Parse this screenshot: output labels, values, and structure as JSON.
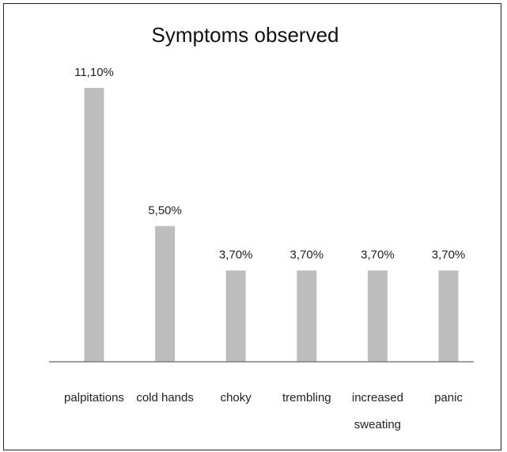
{
  "chart_data": {
    "type": "bar",
    "title": "Symptoms observed",
    "xlabel": "",
    "ylabel": "",
    "categories": [
      "palpitations",
      "cold hands",
      "choky",
      "trembling",
      "increased sweating",
      "panic"
    ],
    "category_lines": [
      [
        "palpitations"
      ],
      [
        "cold hands"
      ],
      [
        "choky"
      ],
      [
        "trembling"
      ],
      [
        "increased",
        "sweating"
      ],
      [
        "panic"
      ]
    ],
    "values": [
      11.1,
      5.5,
      3.7,
      3.7,
      3.7,
      3.7
    ],
    "value_labels": [
      "11,10%",
      "5,50%",
      "3,70%",
      "3,70%",
      "3,70%",
      "3,70%"
    ],
    "unit": "%",
    "ylim": [
      0,
      11.1
    ],
    "grid": false,
    "legend": "none",
    "colors": {
      "bar": "#bdbdbd",
      "axis": "#7f7f7f",
      "text": "#222222",
      "frame": "#222222"
    }
  }
}
